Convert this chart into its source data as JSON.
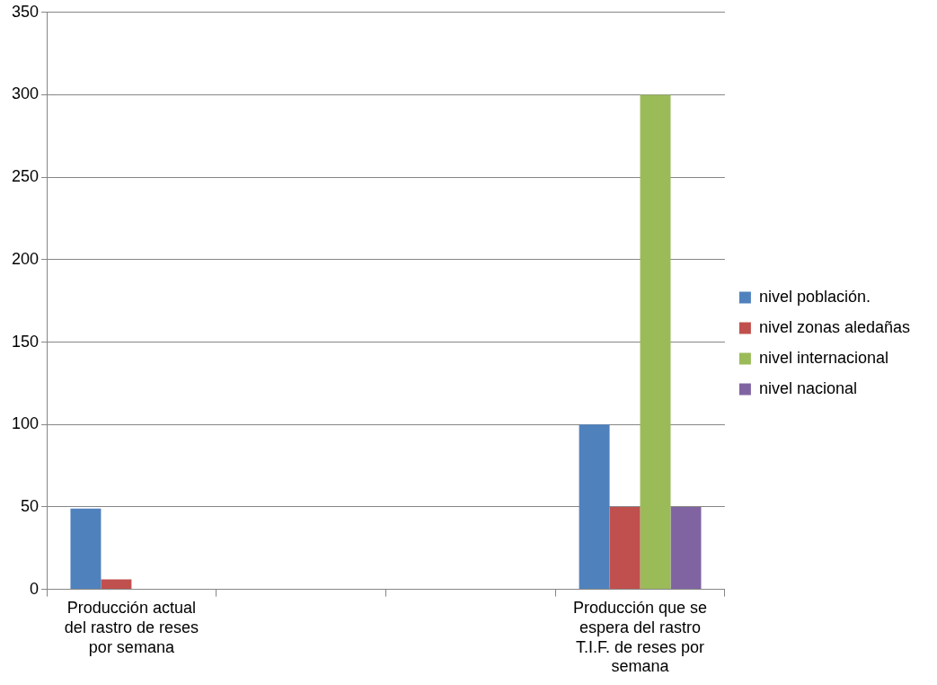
{
  "chart_data": {
    "type": "bar",
    "categories": [
      "Producción actual del rastro de reses por semana",
      null,
      null,
      "Producción que se espera del rastro T.I.F. de reses por semana"
    ],
    "series": [
      {
        "name": "nivel población.",
        "color": "#4f81bd",
        "values": [
          49,
          null,
          null,
          100
        ]
      },
      {
        "name": "nivel zonas aledañas",
        "color": "#c0504d",
        "values": [
          6,
          null,
          null,
          50
        ]
      },
      {
        "name": "nivel internacional",
        "color": "#9bbb59",
        "values": [
          null,
          null,
          null,
          300
        ]
      },
      {
        "name": "nivel nacional",
        "color": "#8064a2",
        "values": [
          null,
          null,
          null,
          50
        ]
      }
    ],
    "ylim": [
      0,
      350
    ],
    "yticks": [
      0,
      50,
      100,
      150,
      200,
      250,
      300,
      350
    ],
    "grid": "y",
    "legend": "right"
  }
}
